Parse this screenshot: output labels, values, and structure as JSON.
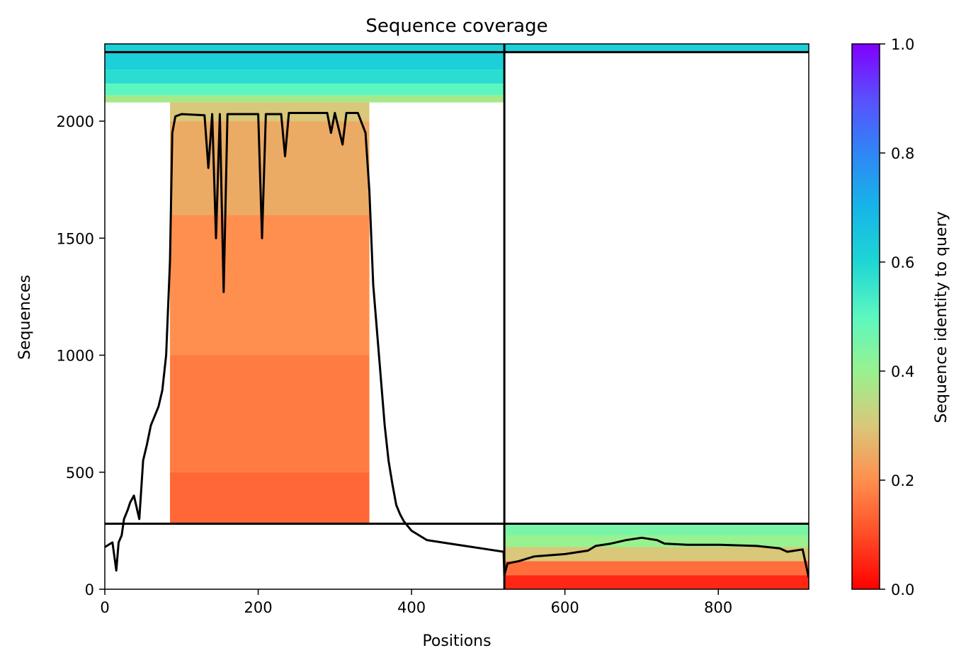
{
  "chart_data": {
    "type": "heatmap",
    "title": "Sequence coverage",
    "xlabel": "Positions",
    "ylabel": "Sequences",
    "colorbar_label": "Sequence identity to query",
    "colormap": "rainbow_r",
    "xlim": [
      0,
      918
    ],
    "ylim": [
      0,
      2330
    ],
    "xticks": [
      0,
      200,
      400,
      600,
      800
    ],
    "yticks": [
      0,
      500,
      1000,
      1500,
      2000
    ],
    "colorbar_range": [
      0,
      1
    ],
    "colorbar_ticks": [
      "0.0",
      "0.2",
      "0.4",
      "0.6",
      "0.8",
      "1.0"
    ],
    "chain_boundaries": {
      "x": [
        521
      ],
      "y": [
        280,
        2295
      ]
    },
    "coverage_blocks": [
      {
        "name": "chain-A-paired",
        "x_range": [
          0,
          521
        ],
        "y_range": [
          2080,
          2330
        ],
        "identity_bands": [
          [
            2295,
            2330,
            0.62
          ],
          [
            2220,
            2295,
            0.62
          ],
          [
            2160,
            2220,
            0.58
          ],
          [
            2110,
            2160,
            0.5
          ],
          [
            2080,
            2110,
            0.38
          ]
        ]
      },
      {
        "name": "chain-B-paired",
        "x_range": [
          521,
          918
        ],
        "y_range": [
          2295,
          2330
        ],
        "identity_bands": [
          [
            2295,
            2330,
            0.62
          ]
        ]
      },
      {
        "name": "chain-A-unpaired",
        "x_range": [
          85,
          345
        ],
        "y_range": [
          280,
          2080
        ],
        "identity_bands": [
          [
            2000,
            2080,
            0.3
          ],
          [
            1600,
            2000,
            0.25
          ],
          [
            1000,
            1600,
            0.2
          ],
          [
            500,
            1000,
            0.17
          ],
          [
            280,
            500,
            0.14
          ]
        ]
      },
      {
        "name": "chain-B-unpaired",
        "x_range": [
          521,
          918
        ],
        "y_range": [
          0,
          280
        ],
        "identity_bands": [
          [
            230,
            280,
            0.45
          ],
          [
            180,
            230,
            0.4
          ],
          [
            120,
            180,
            0.3
          ],
          [
            60,
            120,
            0.15
          ],
          [
            0,
            60,
            0.05
          ]
        ]
      }
    ],
    "coverage_line": {
      "x": [
        0,
        10,
        15,
        18,
        22,
        25,
        30,
        33,
        38,
        45,
        50,
        55,
        60,
        70,
        75,
        80,
        85,
        88,
        92,
        100,
        130,
        135,
        140,
        145,
        150,
        155,
        160,
        170,
        200,
        205,
        210,
        230,
        235,
        240,
        260,
        290,
        295,
        300,
        310,
        315,
        330,
        340,
        345,
        350,
        355,
        360,
        365,
        370,
        375,
        380,
        385,
        390,
        400,
        420,
        450,
        470,
        500,
        520,
        521,
        525,
        540,
        560,
        600,
        620,
        630,
        640,
        660,
        680,
        700,
        720,
        730,
        760,
        800,
        850,
        880,
        890,
        910,
        918
      ],
      "y": [
        180,
        200,
        80,
        200,
        230,
        300,
        340,
        370,
        400,
        300,
        550,
        620,
        700,
        780,
        850,
        1000,
        1400,
        1950,
        2020,
        2030,
        2025,
        1800,
        2030,
        1500,
        2030,
        1270,
        2030,
        2030,
        2030,
        1500,
        2030,
        2030,
        1850,
        2035,
        2035,
        2035,
        1950,
        2035,
        1900,
        2035,
        2035,
        1950,
        1700,
        1300,
        1100,
        900,
        700,
        550,
        450,
        360,
        320,
        290,
        250,
        210,
        195,
        185,
        170,
        160,
        60,
        110,
        120,
        140,
        150,
        160,
        165,
        185,
        195,
        210,
        220,
        210,
        195,
        190,
        190,
        185,
        175,
        160,
        170,
        50
      ]
    }
  }
}
